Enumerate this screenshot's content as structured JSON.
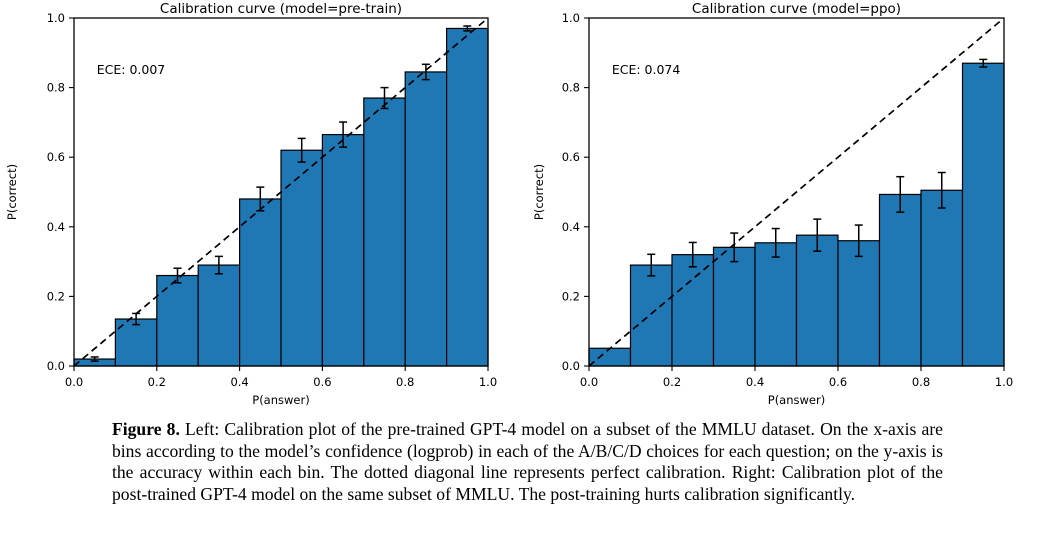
{
  "figure": {
    "caption_label": "Figure 8.",
    "caption_text": " Left: Calibration plot of the pre-trained GPT-4 model on a subset of the MMLU dataset. On the x-axis are bins according to the model’s confidence (logprob) in each of the A/B/C/D choices for each question; on the y-axis is the accuracy within each bin. The dotted diagonal line represents perfect calibration. Right: Calibration plot of the post-trained GPT-4 model on the same subset of MMLU. The post-training hurts calibration significantly."
  },
  "colors": {
    "bar_fill": "#1f77b4",
    "bar_edge": "#000000",
    "diagonal_line": "#000000",
    "axis": "#000000"
  },
  "chart_data": [
    {
      "type": "bar",
      "title": "Calibration curve (model=pre-train)",
      "annotation": "ECE: 0.007",
      "xlabel": "P(answer)",
      "ylabel": "P(correct)",
      "xlim": [
        0.0,
        1.0
      ],
      "ylim": [
        0.0,
        1.0
      ],
      "grid": false,
      "diagonal_reference_line": true,
      "xticks": [
        "0.0",
        "0.2",
        "0.4",
        "0.6",
        "0.8",
        "1.0"
      ],
      "yticks": [
        "0.0",
        "0.2",
        "0.4",
        "0.6",
        "0.8",
        "1.0"
      ],
      "bin_edges": [
        0.0,
        0.1,
        0.2,
        0.3,
        0.4,
        0.5,
        0.6,
        0.7,
        0.8,
        0.9,
        1.0
      ],
      "values": [
        0.02,
        0.135,
        0.26,
        0.29,
        0.48,
        0.62,
        0.665,
        0.77,
        0.845,
        0.97
      ],
      "errors": [
        0.006,
        0.016,
        0.021,
        0.025,
        0.034,
        0.034,
        0.036,
        0.03,
        0.022,
        0.007
      ]
    },
    {
      "type": "bar",
      "title": "Calibration curve (model=ppo)",
      "annotation": "ECE: 0.074",
      "xlabel": "P(answer)",
      "ylabel": "P(correct)",
      "xlim": [
        0.0,
        1.0
      ],
      "ylim": [
        0.0,
        1.0
      ],
      "grid": false,
      "diagonal_reference_line": true,
      "xticks": [
        "0.0",
        "0.2",
        "0.4",
        "0.6",
        "0.8",
        "1.0"
      ],
      "yticks": [
        "0.0",
        "0.2",
        "0.4",
        "0.6",
        "0.8",
        "1.0"
      ],
      "bin_edges": [
        0.0,
        0.1,
        0.2,
        0.3,
        0.4,
        0.5,
        0.6,
        0.7,
        0.8,
        0.9,
        1.0
      ],
      "values": [
        0.051,
        0.29,
        0.32,
        0.341,
        0.354,
        0.376,
        0.36,
        0.493,
        0.505,
        0.87
      ],
      "errors": [
        0.0,
        0.031,
        0.035,
        0.041,
        0.041,
        0.046,
        0.045,
        0.051,
        0.051,
        0.011
      ]
    }
  ]
}
